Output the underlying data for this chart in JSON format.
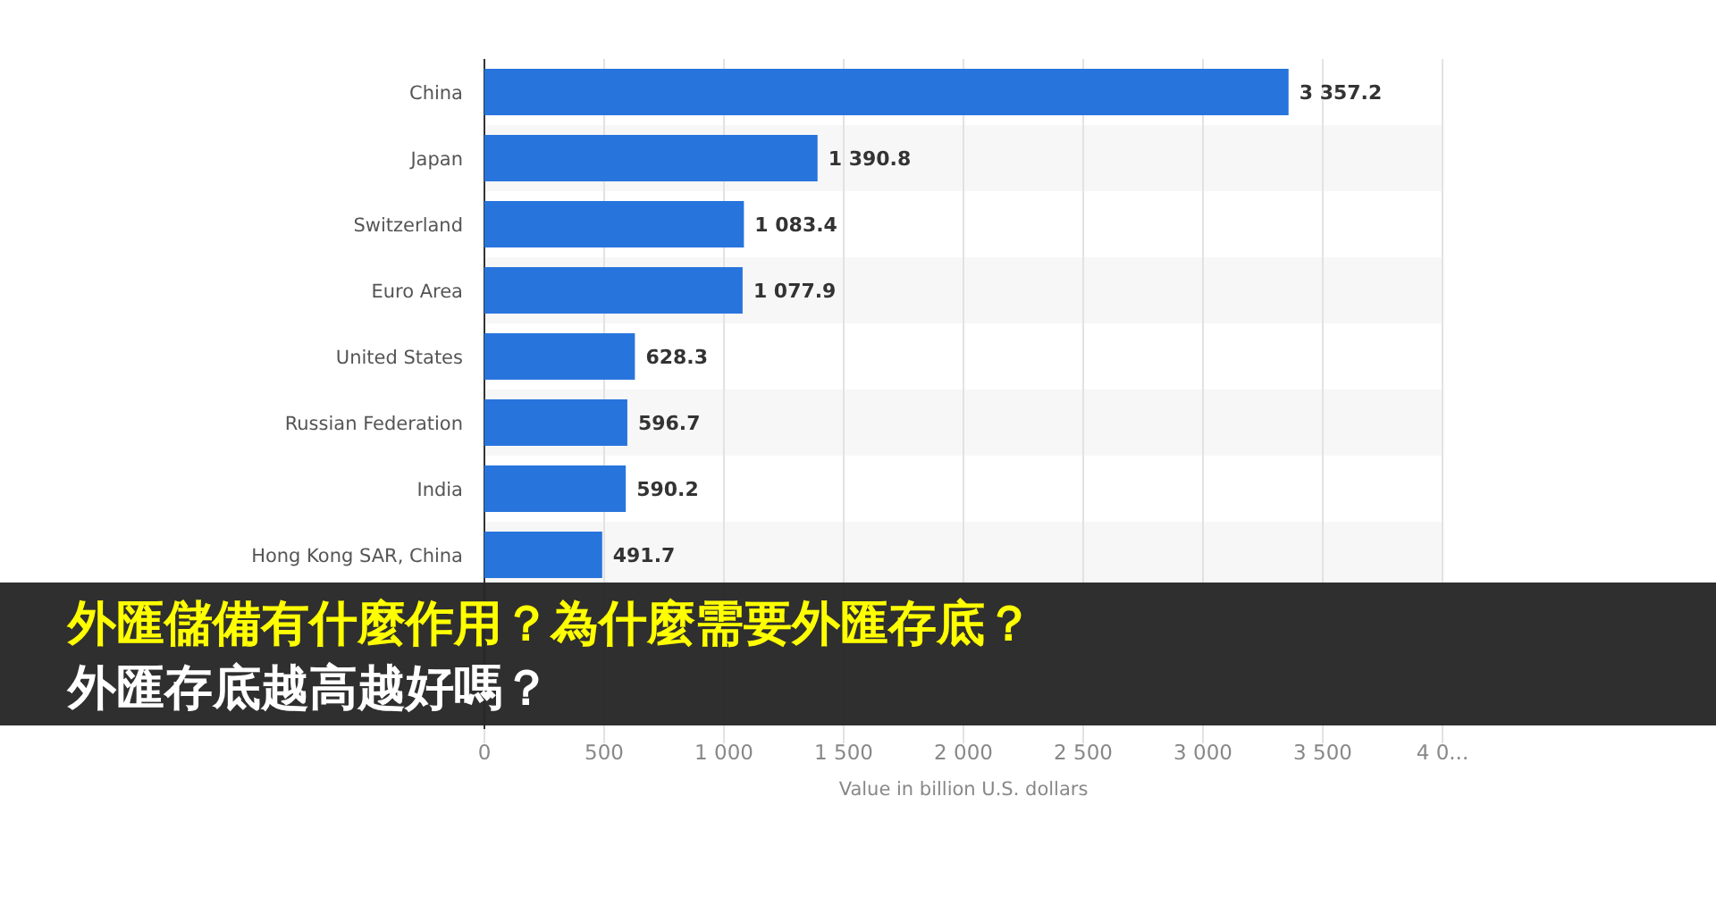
{
  "chart_data": {
    "type": "bar",
    "orientation": "horizontal",
    "title": "外匯儲備有什麼作用？為什麼需要外匯存底？",
    "subtitle": "外匯存底越高越好嗎？",
    "xlabel": "Value in billion U.S. dollars",
    "categories": [
      "China",
      "Japan",
      "Switzerland",
      "Euro Area",
      "United States",
      "Russian Federation",
      "India",
      "Hong Kong SAR, China"
    ],
    "values": [
      3357.2,
      1390.8,
      1083.4,
      1077.9,
      628.3,
      596.7,
      590.2,
      491.7
    ],
    "value_labels": [
      "3 357.2",
      "1 390.8",
      "1 083.4",
      "1 077.9",
      "628.3",
      "596.7",
      "590.2",
      "491.7"
    ],
    "color": "#2874dd",
    "xlim": [
      0,
      4000
    ],
    "xticks": [
      0,
      500,
      {
        "value": 1000,
        "label": "1 000"
      },
      {
        "value": 1500,
        "label": "1 500"
      },
      {
        "value": 2000,
        "label": "2 000"
      },
      {
        "value": 2500,
        "label": "2 500"
      },
      {
        "value": 3000,
        "label": "3 000"
      },
      {
        "value": 3500,
        "label": "3 500"
      },
      {
        "value": 4000,
        "label": "4 0..."
      }
    ],
    "grid": "x"
  }
}
